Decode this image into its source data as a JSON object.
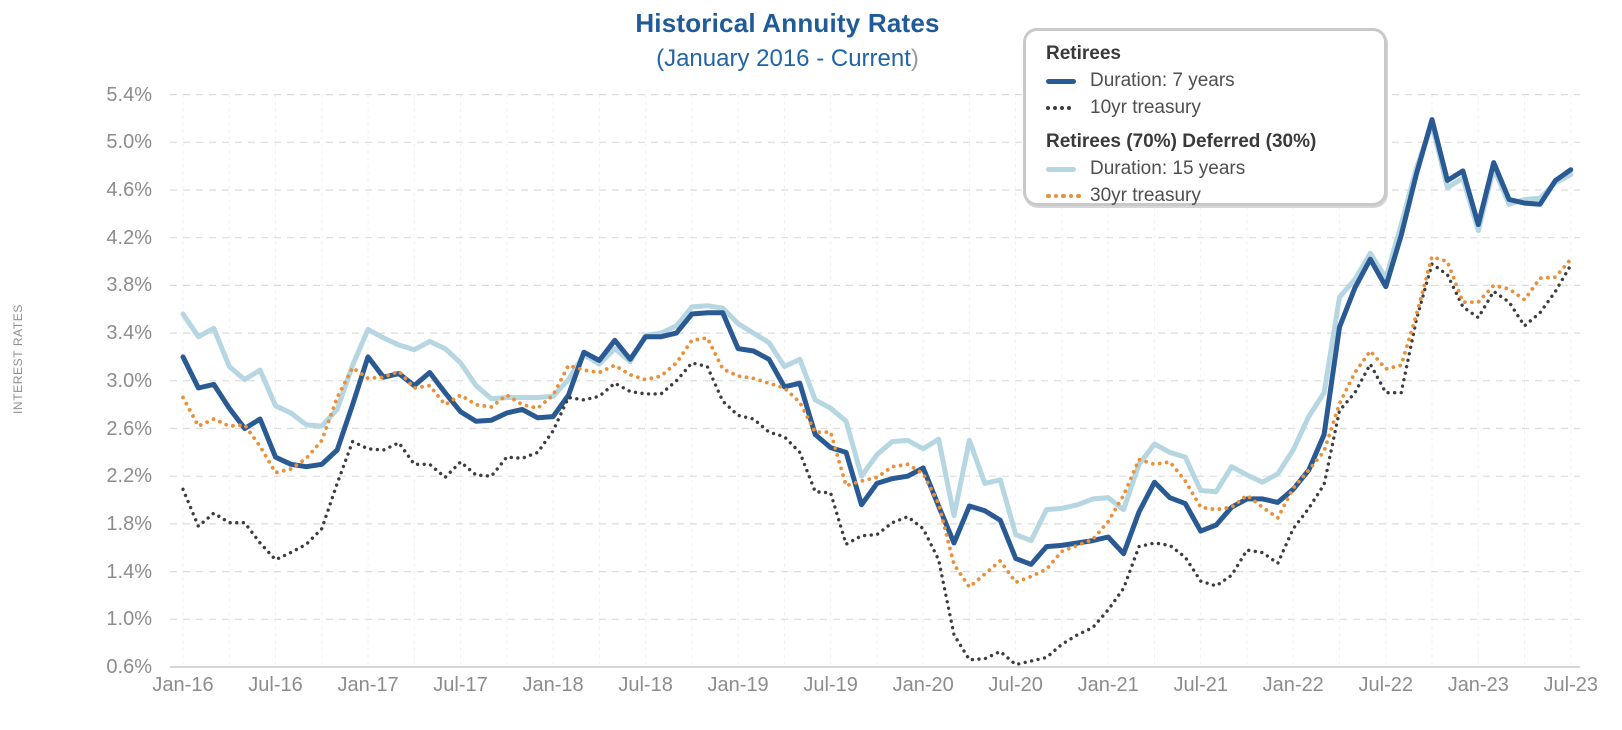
{
  "title": {
    "text": "Historical Annuity Rates",
    "subtitle": "(January 2016 - Current",
    "subtitle_suffix": ")"
  },
  "y_axis": {
    "label": "INTEREST RATES",
    "tick_labels": [
      "5.4%",
      "5.0%",
      "4.6%",
      "4.2%",
      "3.8%",
      "3.4%",
      "3.0%",
      "2.6%",
      "2.2%",
      "1.8%",
      "1.4%",
      "1.0%",
      "0.6%"
    ],
    "tick_values": [
      5.4,
      5.0,
      4.6,
      4.2,
      3.8,
      3.4,
      3.0,
      2.6,
      2.2,
      1.8,
      1.4,
      1.0,
      0.6
    ]
  },
  "x_axis": {
    "tick_labels": [
      "Jan-16",
      "Jul-16",
      "Jan-17",
      "Jul-17",
      "Jan-18",
      "Jul-18",
      "Jan-19",
      "Jul-19",
      "Jan-20",
      "Jul-20",
      "Jan-21",
      "Jul-21",
      "Jan-22",
      "Jul-22",
      "Jan-23",
      "Jul-23"
    ]
  },
  "legend": {
    "groups": [
      {
        "header": "Retirees",
        "items": [
          {
            "icon": "solid-line-swatch",
            "style": "solid",
            "color": "#2a5a94",
            "label": "Duration: 7 years"
          },
          {
            "icon": "dotted-line-swatch",
            "style": "dotted",
            "color": "#3d3d3d",
            "dots": 4,
            "label": "10yr treasury"
          }
        ]
      },
      {
        "header": "Retirees (70%) Deferred (30%)",
        "items": [
          {
            "icon": "solid-line-swatch",
            "style": "solid",
            "color": "#b6d6e1",
            "label": "Duration: 15 years"
          },
          {
            "icon": "dotted-line-swatch",
            "style": "dotted",
            "color": "#e9903a",
            "dots": 5,
            "label": "30yr treasury"
          }
        ]
      }
    ]
  },
  "colors": {
    "title_blue": "#1f5b99",
    "navy": "#2a5a94",
    "light_blue": "#b6d6e1",
    "black_dotted": "#3d3d3d",
    "orange_dotted": "#e9903a",
    "axis_text": "#8c8c8c",
    "gridline": "#dcdcdc",
    "vertical_gridline": "#ececec",
    "axis_line": "#c8c8c8"
  },
  "chart_data": {
    "type": "line",
    "title": "Historical Annuity Rates",
    "subtitle": "(January 2016 - Current)",
    "xlabel": "",
    "ylabel": "INTEREST RATES",
    "ylim": [
      0.6,
      5.4
    ],
    "y_tick_step": 0.4,
    "grid": true,
    "legend_position": "top-right",
    "x": [
      "Jan-16",
      "Feb-16",
      "Mar-16",
      "Apr-16",
      "May-16",
      "Jun-16",
      "Jul-16",
      "Aug-16",
      "Sep-16",
      "Oct-16",
      "Nov-16",
      "Dec-16",
      "Jan-17",
      "Feb-17",
      "Mar-17",
      "Apr-17",
      "May-17",
      "Jun-17",
      "Jul-17",
      "Aug-17",
      "Sep-17",
      "Oct-17",
      "Nov-17",
      "Dec-17",
      "Jan-18",
      "Feb-18",
      "Mar-18",
      "Apr-18",
      "May-18",
      "Jun-18",
      "Jul-18",
      "Aug-18",
      "Sep-18",
      "Oct-18",
      "Nov-18",
      "Dec-18",
      "Jan-19",
      "Feb-19",
      "Mar-19",
      "Apr-19",
      "May-19",
      "Jun-19",
      "Jul-19",
      "Aug-19",
      "Sep-19",
      "Oct-19",
      "Nov-19",
      "Dec-19",
      "Jan-20",
      "Feb-20",
      "Mar-20",
      "Apr-20",
      "May-20",
      "Jun-20",
      "Jul-20",
      "Aug-20",
      "Sep-20",
      "Oct-20",
      "Nov-20",
      "Dec-20",
      "Jan-21",
      "Feb-21",
      "Mar-21",
      "Apr-21",
      "May-21",
      "Jun-21",
      "Jul-21",
      "Aug-21",
      "Sep-21",
      "Oct-21",
      "Nov-21",
      "Dec-21",
      "Jan-22",
      "Feb-22",
      "Mar-22",
      "Apr-22",
      "May-22",
      "Jun-22",
      "Jul-22",
      "Aug-22",
      "Sep-22",
      "Oct-22",
      "Nov-22",
      "Dec-22",
      "Jan-23",
      "Feb-23",
      "Mar-23",
      "Apr-23",
      "May-23",
      "Jun-23",
      "Jul-23"
    ],
    "series": [
      {
        "name": "Duration: 7 years",
        "group": "Retirees",
        "style": "solid",
        "color": "#2a5a94",
        "values": [
          3.2,
          2.94,
          2.97,
          2.77,
          2.6,
          2.68,
          2.36,
          2.3,
          2.28,
          2.3,
          2.42,
          2.8,
          3.2,
          3.03,
          3.06,
          2.96,
          3.07,
          2.9,
          2.74,
          2.66,
          2.67,
          2.73,
          2.76,
          2.69,
          2.7,
          2.88,
          3.24,
          3.17,
          3.34,
          3.18,
          3.37,
          3.37,
          3.4,
          3.56,
          3.57,
          3.57,
          3.27,
          3.25,
          3.18,
          2.95,
          2.98,
          2.55,
          2.44,
          2.4,
          1.96,
          2.14,
          2.18,
          2.2,
          2.27,
          1.95,
          1.64,
          1.95,
          1.91,
          1.83,
          1.51,
          1.46,
          1.61,
          1.62,
          1.64,
          1.66,
          1.69,
          1.55,
          1.9,
          2.15,
          2.02,
          1.97,
          1.74,
          1.79,
          1.94,
          2.01,
          2.01,
          1.98,
          2.09,
          2.25,
          2.55,
          3.45,
          3.78,
          4.02,
          3.79,
          4.22,
          4.74,
          5.19,
          4.68,
          4.76,
          4.31,
          4.83,
          4.52,
          4.49,
          4.48,
          4.68,
          4.77
        ]
      },
      {
        "name": "Duration: 15 years",
        "group": "Retirees (70%) Deferred (30%)",
        "style": "solid",
        "color": "#b6d6e1",
        "values": [
          3.56,
          3.37,
          3.44,
          3.12,
          3.01,
          3.09,
          2.79,
          2.73,
          2.63,
          2.62,
          2.76,
          3.13,
          3.43,
          3.36,
          3.3,
          3.26,
          3.33,
          3.27,
          3.15,
          2.96,
          2.85,
          2.86,
          2.86,
          2.86,
          2.87,
          3.01,
          3.22,
          3.14,
          3.27,
          3.16,
          3.38,
          3.4,
          3.46,
          3.62,
          3.63,
          3.61,
          3.48,
          3.4,
          3.32,
          3.12,
          3.18,
          2.84,
          2.77,
          2.66,
          2.2,
          2.38,
          2.49,
          2.5,
          2.43,
          2.51,
          1.87,
          2.5,
          2.14,
          2.17,
          1.71,
          1.66,
          1.92,
          1.93,
          1.96,
          2.01,
          2.02,
          1.92,
          2.3,
          2.47,
          2.4,
          2.36,
          2.08,
          2.07,
          2.28,
          2.21,
          2.15,
          2.22,
          2.42,
          2.7,
          2.9,
          3.7,
          3.85,
          4.07,
          3.86,
          4.31,
          4.79,
          5.15,
          4.62,
          4.7,
          4.26,
          4.78,
          4.48,
          4.52,
          4.53,
          4.66,
          4.73
        ]
      },
      {
        "name": "10yr treasury",
        "group": "Retirees",
        "style": "dotted",
        "color": "#3d3d3d",
        "values": [
          2.09,
          1.78,
          1.89,
          1.81,
          1.81,
          1.64,
          1.5,
          1.56,
          1.63,
          1.76,
          2.14,
          2.49,
          2.43,
          2.42,
          2.48,
          2.3,
          2.3,
          2.19,
          2.32,
          2.21,
          2.2,
          2.36,
          2.35,
          2.4,
          2.58,
          2.86,
          2.84,
          2.87,
          2.98,
          2.91,
          2.89,
          2.89,
          3.0,
          3.15,
          3.12,
          2.83,
          2.71,
          2.68,
          2.57,
          2.53,
          2.4,
          2.07,
          2.06,
          1.63,
          1.7,
          1.71,
          1.81,
          1.86,
          1.76,
          1.5,
          0.87,
          0.66,
          0.67,
          0.73,
          0.62,
          0.65,
          0.68,
          0.79,
          0.87,
          0.93,
          1.08,
          1.26,
          1.61,
          1.64,
          1.62,
          1.52,
          1.32,
          1.28,
          1.37,
          1.58,
          1.56,
          1.47,
          1.76,
          1.93,
          2.13,
          2.75,
          2.9,
          3.14,
          2.9,
          2.9,
          3.52,
          3.98,
          3.89,
          3.62,
          3.53,
          3.75,
          3.66,
          3.46,
          3.57,
          3.75,
          3.97
        ]
      },
      {
        "name": "30yr treasury",
        "group": "Retirees (70%) Deferred (30%)",
        "style": "dotted",
        "color": "#e9903a",
        "values": [
          2.86,
          2.62,
          2.68,
          2.62,
          2.63,
          2.45,
          2.23,
          2.26,
          2.35,
          2.5,
          2.86,
          3.11,
          3.02,
          3.03,
          3.08,
          2.94,
          2.96,
          2.8,
          2.88,
          2.8,
          2.78,
          2.88,
          2.8,
          2.77,
          2.88,
          3.13,
          3.09,
          3.07,
          3.13,
          3.05,
          3.01,
          3.04,
          3.15,
          3.34,
          3.36,
          3.1,
          3.04,
          3.02,
          2.98,
          2.94,
          2.82,
          2.57,
          2.57,
          2.12,
          2.16,
          2.19,
          2.28,
          2.3,
          2.22,
          1.97,
          1.46,
          1.27,
          1.38,
          1.49,
          1.31,
          1.36,
          1.42,
          1.57,
          1.62,
          1.67,
          1.82,
          2.04,
          2.34,
          2.3,
          2.32,
          2.16,
          1.94,
          1.92,
          1.94,
          2.04,
          1.94,
          1.85,
          2.1,
          2.25,
          2.41,
          2.81,
          3.07,
          3.25,
          3.1,
          3.13,
          3.56,
          4.04,
          4.0,
          3.66,
          3.66,
          3.8,
          3.77,
          3.68,
          3.86,
          3.87,
          4.02
        ]
      }
    ]
  }
}
